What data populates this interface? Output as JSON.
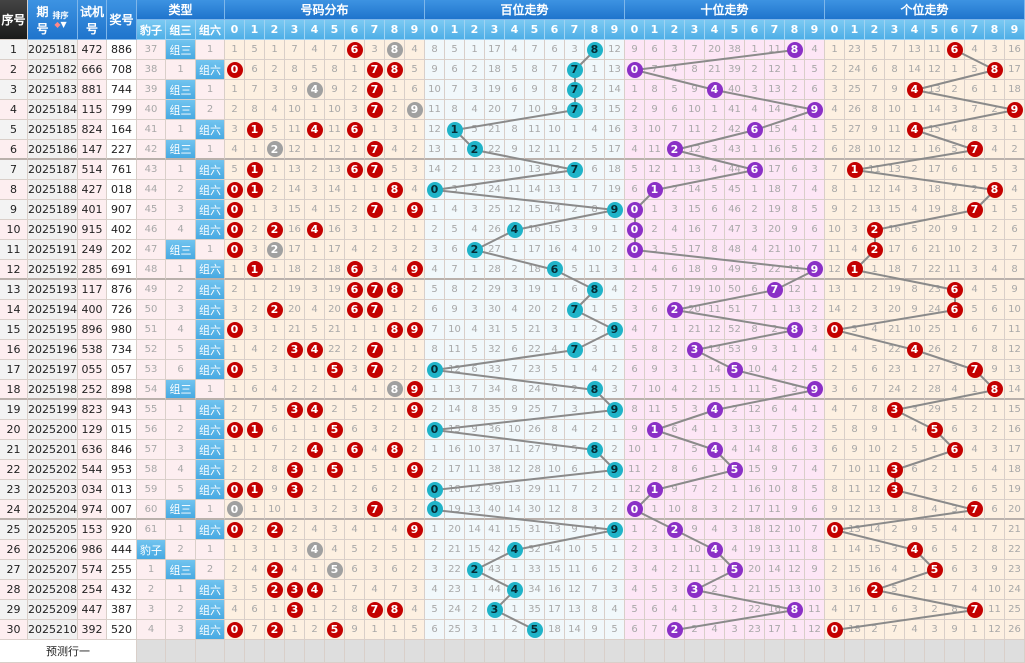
{
  "header": {
    "seq": "序号",
    "issue_top": "期",
    "issue_bottom": "号",
    "sort": "排序",
    "test_top": "试机",
    "test_bottom": "号",
    "prize": "奖号",
    "type_group": "类型",
    "type_labels": [
      "豹子",
      "组三",
      "组六"
    ],
    "distribution": "号码分布",
    "hundreds": "百位走势",
    "tens": "十位走势",
    "units": "个位走势",
    "digits": [
      "0",
      "1",
      "2",
      "3",
      "4",
      "5",
      "6",
      "7",
      "8",
      "9"
    ]
  },
  "colors": {
    "distribution_ball": "#c40000",
    "repeat_ball": "#a0a0a0",
    "hundreds_ball": "#1fb3c8",
    "tens_ball": "#8a2fc6",
    "units_ball": "#c40000",
    "hundreds_bg": "#f1f8fb",
    "tens_bg": "#fde6f6",
    "units_bg": "#fdf0e1",
    "line": "#8a8a8a"
  },
  "first_row_omissions": {
    "types": [
      37,
      0,
      1
    ],
    "distribution": [
      1,
      5,
      1,
      7,
      4,
      7,
      0,
      3,
      0,
      4
    ],
    "hundreds": [
      8,
      5,
      1,
      17,
      4,
      7,
      6,
      3,
      0,
      12
    ],
    "tens": [
      9,
      6,
      3,
      7,
      20,
      38,
      1,
      11,
      0,
      4
    ],
    "units": [
      1,
      23,
      5,
      7,
      13,
      11,
      0,
      4,
      3,
      16
    ]
  },
  "rows": [
    {
      "seq": "1",
      "issue": "2025181",
      "test": "472",
      "prize": "886"
    },
    {
      "seq": "2",
      "issue": "2025182",
      "test": "666",
      "prize": "708"
    },
    {
      "seq": "3",
      "issue": "2025183",
      "test": "881",
      "prize": "744"
    },
    {
      "seq": "4",
      "issue": "2025184",
      "test": "115",
      "prize": "799"
    },
    {
      "seq": "5",
      "issue": "2025185",
      "test": "824",
      "prize": "164"
    },
    {
      "seq": "6",
      "issue": "2025186",
      "test": "147",
      "prize": "227"
    },
    {
      "seq": "7",
      "issue": "2025187",
      "test": "514",
      "prize": "761"
    },
    {
      "seq": "8",
      "issue": "2025188",
      "test": "427",
      "prize": "018"
    },
    {
      "seq": "9",
      "issue": "2025189",
      "test": "401",
      "prize": "907"
    },
    {
      "seq": "10",
      "issue": "2025190",
      "test": "915",
      "prize": "402"
    },
    {
      "seq": "11",
      "issue": "2025191",
      "test": "249",
      "prize": "202"
    },
    {
      "seq": "12",
      "issue": "2025192",
      "test": "285",
      "prize": "691"
    },
    {
      "seq": "13",
      "issue": "2025193",
      "test": "117",
      "prize": "876"
    },
    {
      "seq": "14",
      "issue": "2025194",
      "test": "400",
      "prize": "726"
    },
    {
      "seq": "15",
      "issue": "2025195",
      "test": "896",
      "prize": "980"
    },
    {
      "seq": "16",
      "issue": "2025196",
      "test": "538",
      "prize": "734"
    },
    {
      "seq": "17",
      "issue": "2025197",
      "test": "055",
      "prize": "057"
    },
    {
      "seq": "18",
      "issue": "2025198",
      "test": "252",
      "prize": "898"
    },
    {
      "seq": "19",
      "issue": "2025199",
      "test": "823",
      "prize": "943"
    },
    {
      "seq": "20",
      "issue": "2025200",
      "test": "129",
      "prize": "015"
    },
    {
      "seq": "21",
      "issue": "2025201",
      "test": "636",
      "prize": "846"
    },
    {
      "seq": "22",
      "issue": "2025202",
      "test": "544",
      "prize": "953"
    },
    {
      "seq": "23",
      "issue": "2025203",
      "test": "034",
      "prize": "013"
    },
    {
      "seq": "24",
      "issue": "2025204",
      "test": "974",
      "prize": "007"
    },
    {
      "seq": "25",
      "issue": "2025205",
      "test": "153",
      "prize": "920"
    },
    {
      "seq": "26",
      "issue": "2025206",
      "test": "986",
      "prize": "444"
    },
    {
      "seq": "27",
      "issue": "2025207",
      "test": "574",
      "prize": "255"
    },
    {
      "seq": "28",
      "issue": "2025208",
      "test": "254",
      "prize": "432"
    },
    {
      "seq": "29",
      "issue": "2025209",
      "test": "447",
      "prize": "387"
    },
    {
      "seq": "30",
      "issue": "2025210",
      "test": "392",
      "prize": "520"
    }
  ],
  "predict_row_label": "预测行一"
}
